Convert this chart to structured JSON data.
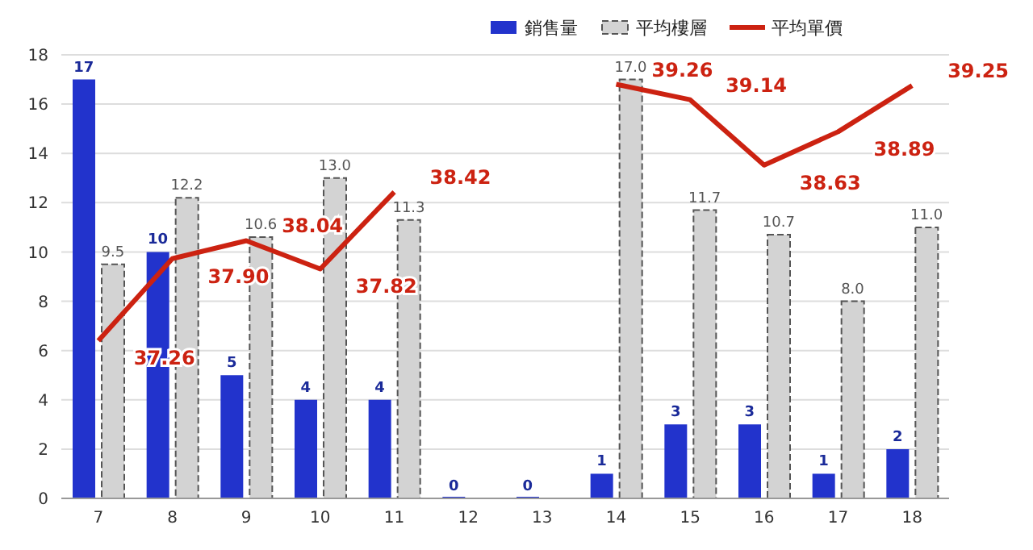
{
  "chart_data": {
    "type": "bar",
    "categories": [
      "7",
      "8",
      "9",
      "10",
      "11",
      "12",
      "13",
      "14",
      "15",
      "16",
      "17",
      "18"
    ],
    "series": [
      {
        "name": "銷售量",
        "color": "#2233cc",
        "values": [
          17,
          10,
          5,
          4,
          4,
          0,
          0,
          1,
          3,
          3,
          1,
          2
        ],
        "value_labels": [
          "17",
          "10",
          "5",
          "4",
          "4",
          "0",
          "0",
          "1",
          "3",
          "3",
          "1",
          "2"
        ]
      },
      {
        "name": "平均樓層",
        "color": "#d3d3d3",
        "line_style": "dashed",
        "values": [
          9.5,
          12.2,
          10.6,
          13.0,
          11.3,
          null,
          null,
          17.0,
          11.7,
          10.7,
          8.0,
          11.0
        ],
        "value_labels": [
          "9.5",
          "12.2",
          "10.6",
          "13.0",
          "11.3",
          null,
          null,
          "17.0",
          "11.7",
          "10.7",
          "8.0",
          "11.0"
        ]
      },
      {
        "name": "平均單價",
        "type": "line",
        "axis": "y2",
        "color": "#cc2211",
        "marker": "none",
        "values": [
          37.26,
          37.9,
          38.04,
          37.82,
          38.42,
          null,
          null,
          39.26,
          39.14,
          38.63,
          38.89,
          39.25
        ],
        "value_labels": [
          "37.26",
          "37.90",
          "38.04",
          "37.82",
          "38.42",
          null,
          null,
          "39.26",
          "39.14",
          "38.63",
          "38.89",
          "39.25"
        ]
      }
    ],
    "ylim": [
      0,
      18
    ],
    "yticks": [
      0,
      2,
      4,
      6,
      8,
      10,
      12,
      14,
      16,
      18
    ],
    "y2lim": [
      36.03,
      39.49
    ],
    "grid": "y",
    "legend": "top right",
    "tick_labels": [
      "x",
      "y"
    ]
  }
}
